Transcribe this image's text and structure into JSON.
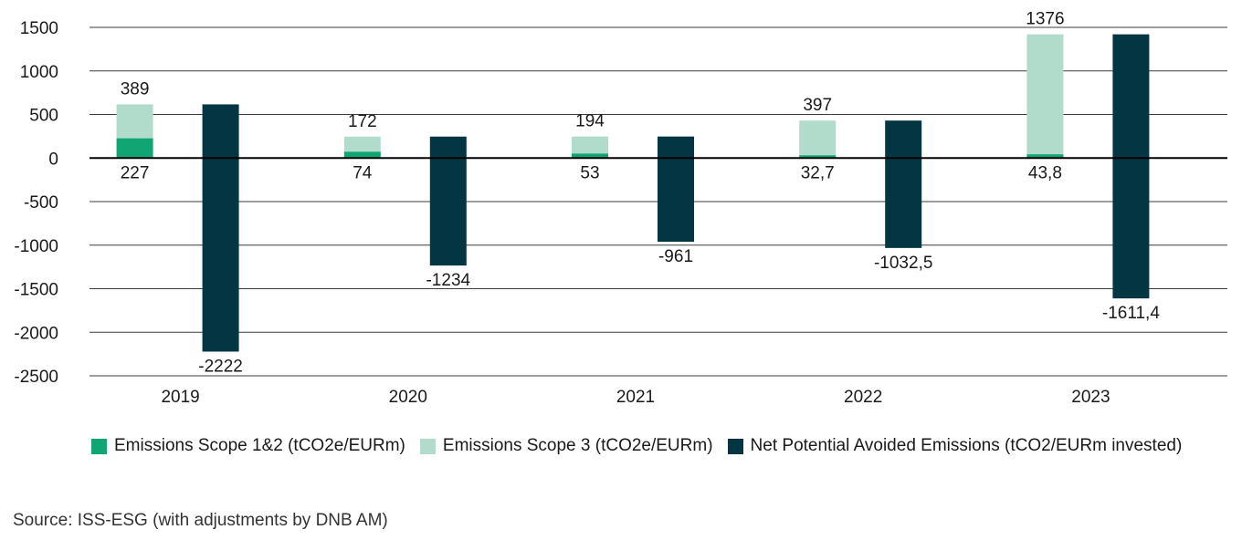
{
  "chart_data": {
    "type": "bar",
    "stacked_groups": true,
    "categories": [
      "2019",
      "2020",
      "2021",
      "2022",
      "2023"
    ],
    "series": [
      {
        "name": "Emissions Scope 1&2 (tCO2e/EURm)",
        "values": [
          227,
          74,
          53,
          32.7,
          43.8
        ],
        "labels": [
          "227",
          "74",
          "53",
          "32,7",
          "43,8"
        ],
        "color": "#12a574",
        "stack": "emissions"
      },
      {
        "name": "Emissions Scope 3 (tCO2e/EURm)",
        "values": [
          389,
          172,
          194,
          397,
          1376
        ],
        "labels": [
          "389",
          "172",
          "194",
          "397",
          "1376"
        ],
        "color": "#b1dccb",
        "stack": "emissions"
      },
      {
        "name": "Net Potential Avoided Emissions (tCO2/EURm invested)",
        "values": [
          -2222,
          -1234,
          -961,
          -1032.5,
          -1611.4
        ],
        "labels": [
          "-2222",
          "-1234",
          "-961",
          "-1032,5",
          "-1611,4"
        ],
        "color": "#033642",
        "stack": "avoided"
      }
    ],
    "avoided_bar_top": [
      616,
      246,
      247,
      430,
      1420
    ],
    "yticks": [
      1500,
      1000,
      500,
      0,
      -500,
      -1000,
      -1500,
      -2000,
      -2500
    ],
    "ylim": [
      -2500,
      1500
    ],
    "grid": true,
    "legend_position": "bottom",
    "title": "",
    "xlabel": "",
    "ylabel": ""
  },
  "source": "Source: ISS-ESG (with adjustments by DNB AM)"
}
